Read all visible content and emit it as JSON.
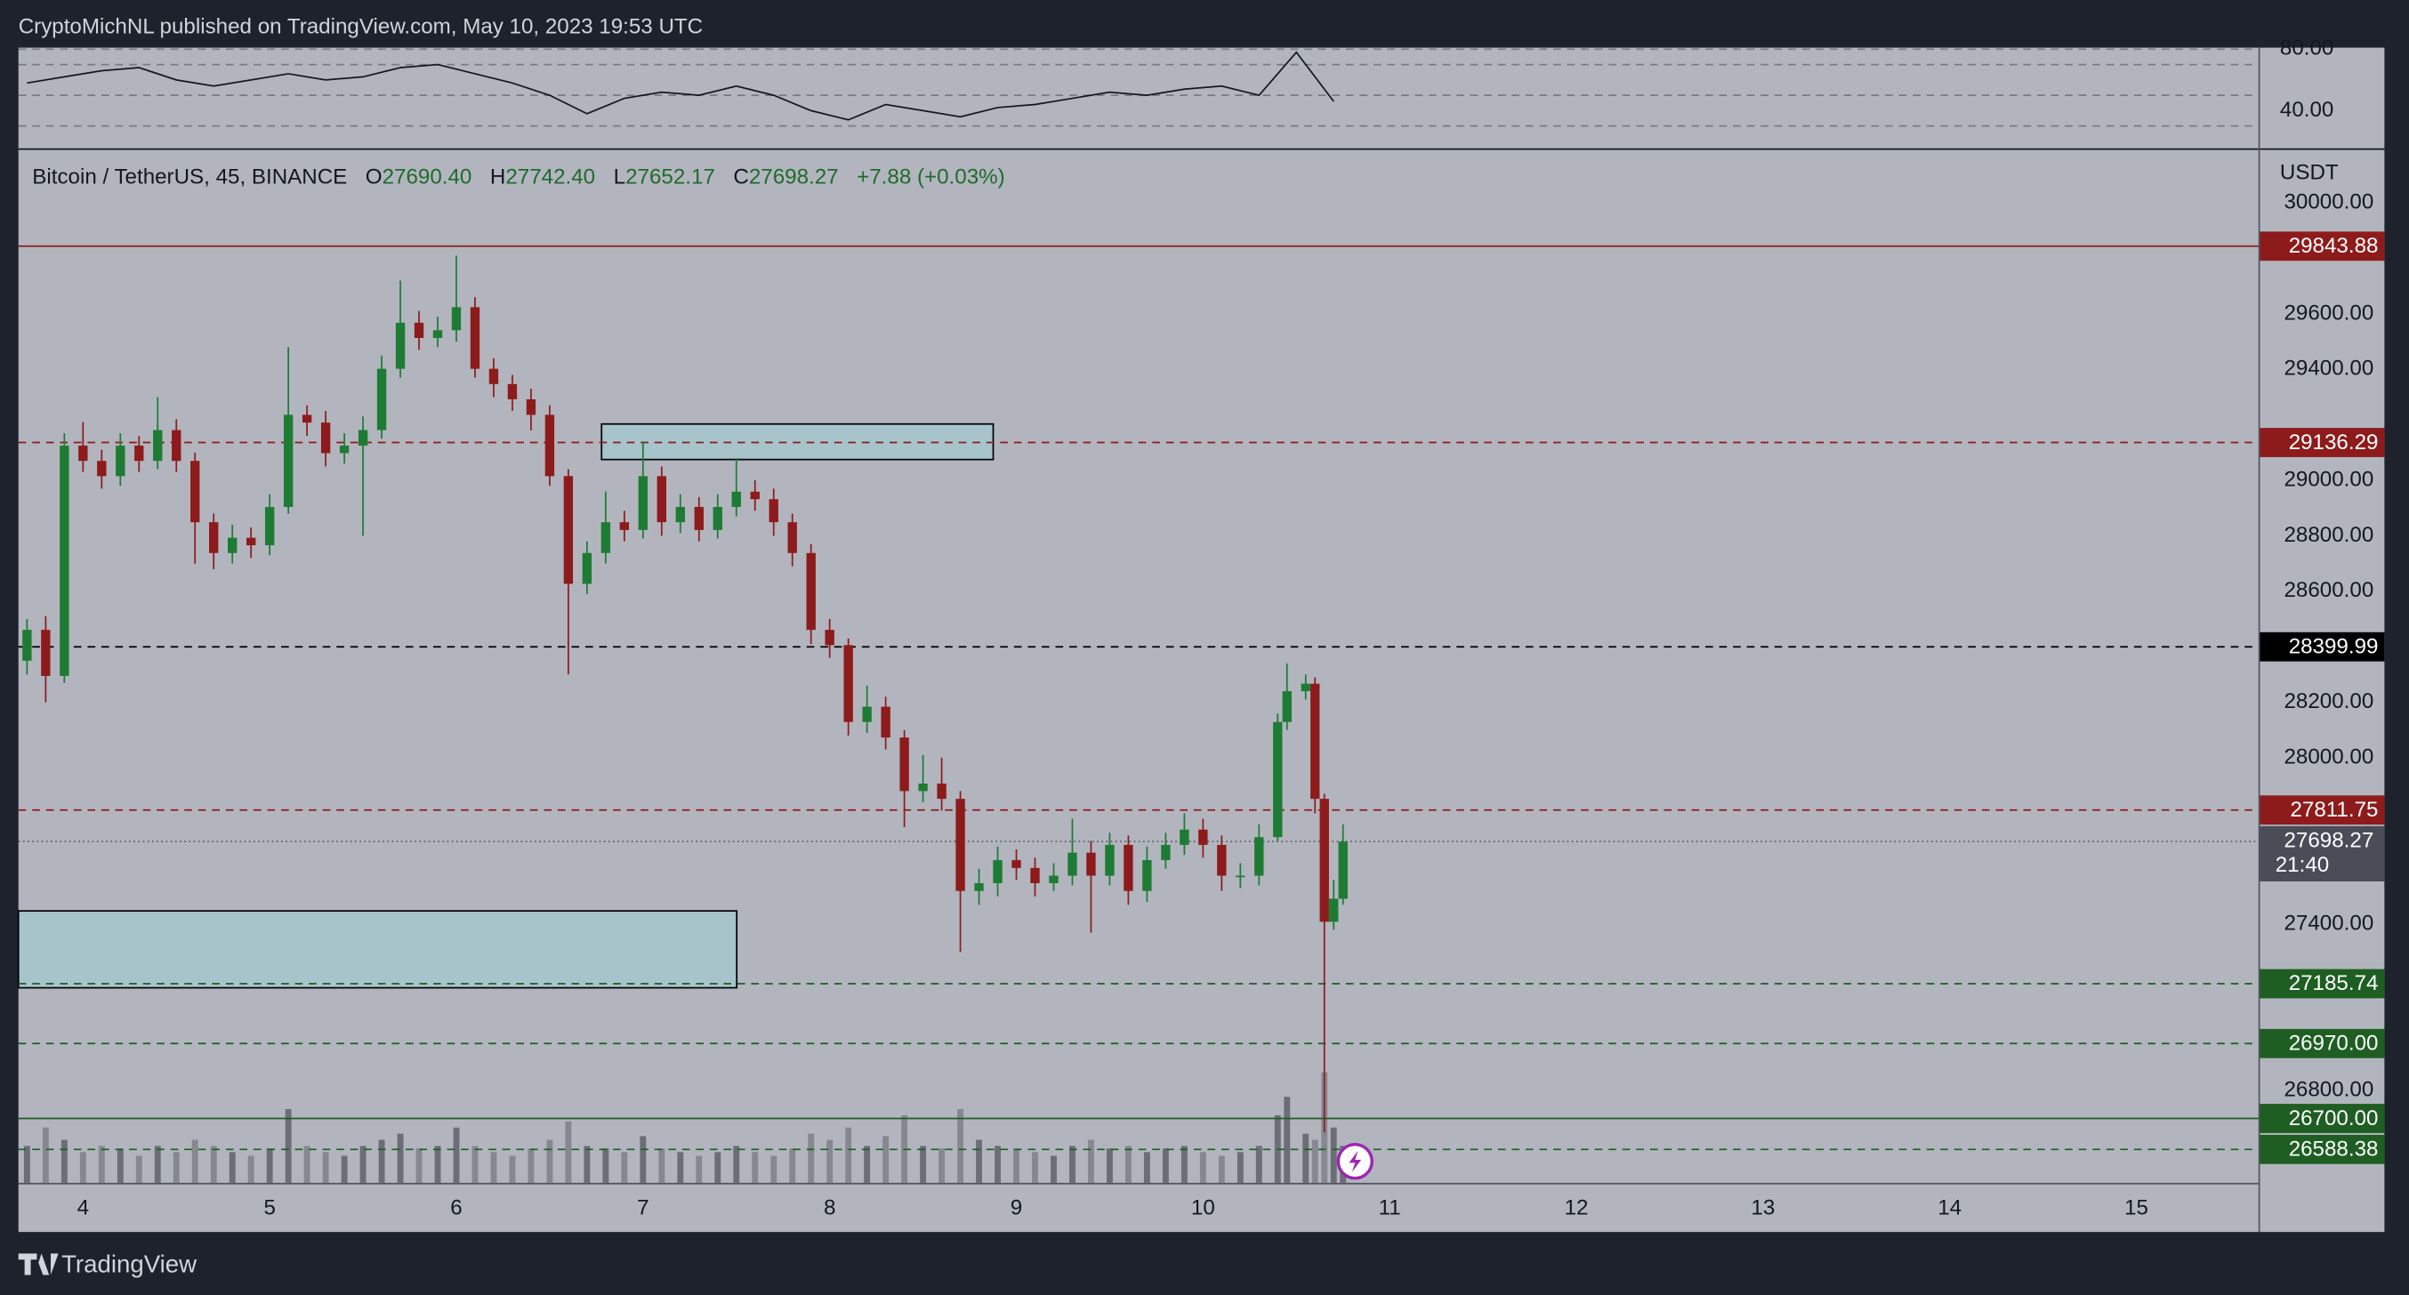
{
  "header": {
    "publisher": "CryptoMichNL published on TradingView.com, May 10, 2023 19:53 UTC"
  },
  "chart_data": {
    "type": "candlestick",
    "symbol": "Bitcoin / TetherUS, 45, BINANCE",
    "ohlc_legend": [
      {
        "label": "O",
        "value": "27690.40"
      },
      {
        "label": "H",
        "value": "27742.40"
      },
      {
        "label": "L",
        "value": "27652.17"
      },
      {
        "label": "C",
        "value": "27698.27"
      }
    ],
    "change": "+7.88 (+0.03%)",
    "y_axis_label": "USDT",
    "x": [
      3.7,
      3.8,
      3.9,
      4.0,
      4.1,
      4.2,
      4.3,
      4.4,
      4.5,
      4.6,
      4.7,
      4.8,
      4.9,
      5.0,
      5.1,
      5.2,
      5.3,
      5.4,
      5.5,
      5.6,
      5.7,
      5.8,
      5.9,
      6.0,
      6.1,
      6.2,
      6.3,
      6.4,
      6.5,
      6.6,
      6.7,
      6.8,
      6.9,
      7.0,
      7.1,
      7.2,
      7.3,
      7.4,
      7.5,
      7.6,
      7.7,
      7.8,
      7.9,
      8.0,
      8.1,
      8.2,
      8.3,
      8.4,
      8.5,
      8.6,
      8.7,
      8.8,
      8.9,
      9.0,
      9.1,
      9.2,
      9.3,
      9.4,
      9.5,
      9.6,
      9.7,
      9.8,
      9.9,
      10.0,
      10.1,
      10.2,
      10.3,
      10.4,
      10.45,
      10.55,
      10.6,
      10.65,
      10.7,
      10.75
    ],
    "open": [
      28350,
      28461,
      28295,
      29125,
      29070,
      29015,
      29125,
      29070,
      29181,
      29070,
      28849,
      28738,
      28793,
      28766,
      28904,
      29236,
      29208,
      29098,
      29125,
      29181,
      29402,
      29568,
      29513,
      29541,
      29624,
      29402,
      29347,
      29292,
      29236,
      29015,
      28627,
      28738,
      28849,
      28821,
      29015,
      28849,
      28904,
      28821,
      28904,
      28959,
      28932,
      28849,
      28738,
      28461,
      28406,
      28129,
      28184,
      28073,
      27880,
      27907,
      27852,
      27520,
      27548,
      27631,
      27603,
      27548,
      27575,
      27658,
      27575,
      27686,
      27520,
      27631,
      27686,
      27741,
      27686,
      27575,
      27575,
      27714,
      28129,
      28240,
      28267,
      27852,
      27409,
      27492
    ],
    "high": [
      28500,
      28510,
      29170,
      29210,
      29110,
      29170,
      29160,
      29300,
      29220,
      29100,
      28880,
      28840,
      28830,
      28950,
      29480,
      29270,
      29250,
      29170,
      29230,
      29450,
      29720,
      29610,
      29590,
      29810,
      29660,
      29440,
      29380,
      29330,
      29270,
      29040,
      28780,
      28960,
      28890,
      29140,
      29050,
      28950,
      28940,
      28950,
      29080,
      29000,
      28970,
      28880,
      28770,
      28500,
      28430,
      28260,
      28220,
      28100,
      28010,
      28000,
      27880,
      27600,
      27680,
      27670,
      27640,
      27620,
      27780,
      27700,
      27730,
      27720,
      27680,
      27730,
      27800,
      27780,
      27720,
      27620,
      27760,
      28160,
      28340,
      28300,
      28290,
      27870,
      27560,
      27760
    ],
    "low": [
      28300,
      28200,
      28270,
      29030,
      28970,
      28980,
      29030,
      29040,
      29030,
      28700,
      28680,
      28700,
      28720,
      28730,
      28880,
      29160,
      29050,
      29060,
      28800,
      29150,
      29370,
      29470,
      29480,
      29500,
      29370,
      29300,
      29250,
      29180,
      28980,
      28300,
      28590,
      28700,
      28780,
      28790,
      28800,
      28810,
      28780,
      28790,
      28870,
      28890,
      28800,
      28690,
      28410,
      28360,
      28080,
      28090,
      28030,
      27750,
      27840,
      27810,
      27300,
      27470,
      27500,
      27560,
      27500,
      27520,
      27540,
      27370,
      27540,
      27470,
      27480,
      27600,
      27650,
      27640,
      27520,
      27530,
      27540,
      27700,
      28100,
      28210,
      27800,
      26650,
      27380,
      27470
    ],
    "close": [
      28461,
      28295,
      29125,
      29070,
      29015,
      29125,
      29070,
      29181,
      29070,
      28849,
      28738,
      28793,
      28766,
      28904,
      29236,
      29208,
      29098,
      29125,
      29181,
      29402,
      29568,
      29513,
      29541,
      29624,
      29402,
      29347,
      29292,
      29236,
      29015,
      28627,
      28738,
      28849,
      28821,
      29015,
      28849,
      28904,
      28821,
      28904,
      28959,
      28932,
      28849,
      28738,
      28461,
      28406,
      28129,
      28184,
      28073,
      27880,
      27907,
      27852,
      27520,
      27548,
      27631,
      27603,
      27548,
      27575,
      27658,
      27575,
      27686,
      27520,
      27631,
      27686,
      27741,
      27686,
      27575,
      27575,
      27714,
      28129,
      28240,
      28267,
      27852,
      27409,
      27492,
      27698
    ],
    "volume": [
      30,
      45,
      35,
      25,
      30,
      28,
      22,
      30,
      25,
      35,
      30,
      25,
      22,
      28,
      60,
      30,
      25,
      22,
      30,
      35,
      40,
      28,
      30,
      45,
      30,
      25,
      22,
      28,
      35,
      50,
      30,
      28,
      25,
      38,
      28,
      25,
      22,
      25,
      30,
      25,
      22,
      28,
      40,
      35,
      45,
      30,
      38,
      55,
      30,
      28,
      60,
      35,
      30,
      28,
      25,
      22,
      30,
      35,
      28,
      30,
      25,
      28,
      30,
      25,
      22,
      25,
      30,
      55,
      70,
      40,
      35,
      90,
      45,
      30
    ],
    "up_color": "#1e7b34",
    "down_color": "#8e1b1b",
    "xlim": [
      3.654,
      15.654
    ],
    "xticks": [
      4,
      5,
      6,
      7,
      8,
      9,
      10,
      11,
      12,
      13,
      14,
      15
    ],
    "ylim": [
      26468,
      30194
    ],
    "yticks": [
      {
        "value": 30000,
        "label": "30000.00"
      },
      {
        "value": 29600,
        "label": "29600.00"
      },
      {
        "value": 29400,
        "label": "29400.00"
      },
      {
        "value": 29000,
        "label": "29000.00"
      },
      {
        "value": 28800,
        "label": "28800.00"
      },
      {
        "value": 28600,
        "label": "28600.00"
      },
      {
        "value": 28200,
        "label": "28200.00"
      },
      {
        "value": 28000,
        "label": "28000.00"
      },
      {
        "value": 27400,
        "label": "27400.00"
      },
      {
        "value": 26800,
        "label": "26800.00"
      }
    ],
    "levels": [
      {
        "value": 29843.88,
        "color": "#8e1b1b",
        "style": "solid"
      },
      {
        "value": 29136.29,
        "color": "#8e1b1b",
        "style": "dashed"
      },
      {
        "value": 28399.99,
        "color": "#000000",
        "style": "dashed"
      },
      {
        "value": 27811.75,
        "color": "#8e1b1b",
        "style": "dashed"
      },
      {
        "value": 27185.74,
        "color": "#1e5e22",
        "style": "dashed"
      },
      {
        "value": 26970,
        "label": "26970.00",
        "color": "#1e5e22",
        "style": "dashed"
      },
      {
        "value": 26700,
        "label": "26700.00",
        "color": "#1e5e22",
        "style": "solid"
      },
      {
        "value": 26588.38,
        "color": "#1e5e22",
        "style": "dashed"
      }
    ],
    "last_price": 27698.27,
    "countdown": "21:40",
    "zones": [
      {
        "x": [
          6.778,
          8.876
        ],
        "y": [
          29075,
          29203
        ]
      },
      {
        "x": [
          3.654,
          7.502
        ],
        "y": [
          27171,
          27448
        ]
      }
    ],
    "rsi": {
      "x": [
        3.7,
        3.9,
        4.1,
        4.3,
        4.5,
        4.7,
        4.9,
        5.1,
        5.3,
        5.5,
        5.7,
        5.9,
        6.1,
        6.3,
        6.5,
        6.7,
        6.9,
        7.1,
        7.3,
        7.5,
        7.7,
        7.9,
        8.1,
        8.3,
        8.5,
        8.7,
        8.9,
        9.1,
        9.3,
        9.5,
        9.7,
        9.9,
        10.1,
        10.3,
        10.5,
        10.7
      ],
      "values": [
        58,
        62,
        66,
        68,
        60,
        56,
        60,
        64,
        60,
        62,
        68,
        70,
        64,
        58,
        50,
        38,
        48,
        52,
        50,
        56,
        50,
        40,
        34,
        44,
        40,
        36,
        42,
        44,
        48,
        52,
        50,
        54,
        56,
        50,
        78,
        46
      ],
      "ylim": [
        15,
        81
      ],
      "yticks": [
        {
          "value": 80,
          "label": "80.00"
        },
        {
          "value": 40,
          "label": "40.00"
        }
      ],
      "levels": [
        80,
        70,
        50,
        30
      ]
    }
  },
  "footer": {
    "brand": "TradingView"
  }
}
